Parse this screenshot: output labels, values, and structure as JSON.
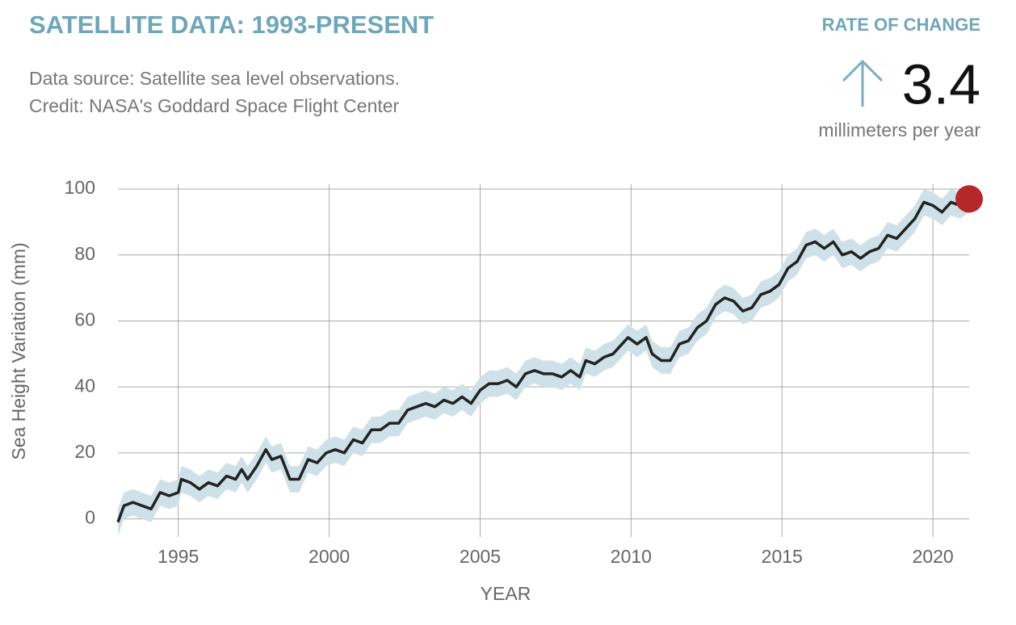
{
  "header": {
    "title": "SATELLITE DATA: 1993-PRESENT",
    "subtitle": [
      "Data source: Satellite sea level observations.",
      "Credit: NASA's Goddard Space Flight Center"
    ],
    "rate_label": "RATE OF CHANGE",
    "rate_value": 3.4,
    "rate_unit": "millimeters per year"
  },
  "chart_data": {
    "type": "line",
    "xlabel": "YEAR",
    "ylabel": "Sea Height Variation (mm)",
    "x": [
      1993.0,
      1993.2,
      1993.5,
      1993.8,
      1994.1,
      1994.4,
      1994.7,
      1995.0,
      1995.1,
      1995.4,
      1995.7,
      1996.0,
      1996.3,
      1996.6,
      1996.9,
      1997.1,
      1997.3,
      1997.6,
      1997.9,
      1998.1,
      1998.4,
      1998.7,
      1999.0,
      1999.3,
      1999.6,
      1999.9,
      2000.2,
      2000.5,
      2000.8,
      2001.1,
      2001.4,
      2001.7,
      2002.0,
      2002.3,
      2002.6,
      2002.9,
      2003.2,
      2003.5,
      2003.8,
      2004.1,
      2004.4,
      2004.7,
      2005.0,
      2005.3,
      2005.6,
      2005.9,
      2006.2,
      2006.5,
      2006.8,
      2007.1,
      2007.4,
      2007.7,
      2008.0,
      2008.3,
      2008.5,
      2008.8,
      2009.1,
      2009.4,
      2009.7,
      2009.9,
      2010.2,
      2010.5,
      2010.7,
      2011.0,
      2011.3,
      2011.6,
      2011.9,
      2012.2,
      2012.5,
      2012.8,
      2013.1,
      2013.4,
      2013.7,
      2014.0,
      2014.3,
      2014.6,
      2014.9,
      2015.2,
      2015.5,
      2015.8,
      2016.1,
      2016.4,
      2016.7,
      2017.0,
      2017.3,
      2017.6,
      2017.9,
      2018.2,
      2018.5,
      2018.8,
      2019.1,
      2019.4,
      2019.7,
      2020.0,
      2020.3,
      2020.6,
      2020.9,
      2021.2
    ],
    "values": [
      -1,
      4,
      5,
      4,
      3,
      8,
      7,
      8,
      12,
      11,
      9,
      11,
      10,
      13,
      12,
      15,
      12,
      16,
      21,
      18,
      19,
      12,
      12,
      18,
      17,
      20,
      21,
      20,
      24,
      23,
      27,
      27,
      29,
      29,
      33,
      34,
      35,
      34,
      36,
      35,
      37,
      35,
      39,
      41,
      41,
      42,
      40,
      44,
      45,
      44,
      44,
      43,
      45,
      43,
      48,
      47,
      49,
      50,
      53,
      55,
      53,
      55,
      50,
      48,
      48,
      53,
      54,
      58,
      60,
      65,
      67,
      66,
      63,
      64,
      68,
      69,
      71,
      76,
      78,
      83,
      84,
      82,
      84,
      80,
      81,
      79,
      81,
      82,
      86,
      85,
      88,
      91,
      96,
      95,
      93,
      96,
      95,
      97
    ],
    "uncertainty": 4,
    "color": "#222222",
    "band_color": "#cfe1e8",
    "marker_color": "#b5282a",
    "xlim": [
      1993,
      2021.2
    ],
    "ylim": [
      -5,
      101
    ],
    "xticks": [
      1995,
      2000,
      2005,
      2010,
      2015,
      2020
    ],
    "yticks": [
      0,
      20,
      40,
      60,
      80,
      100
    ],
    "grid": true
  }
}
